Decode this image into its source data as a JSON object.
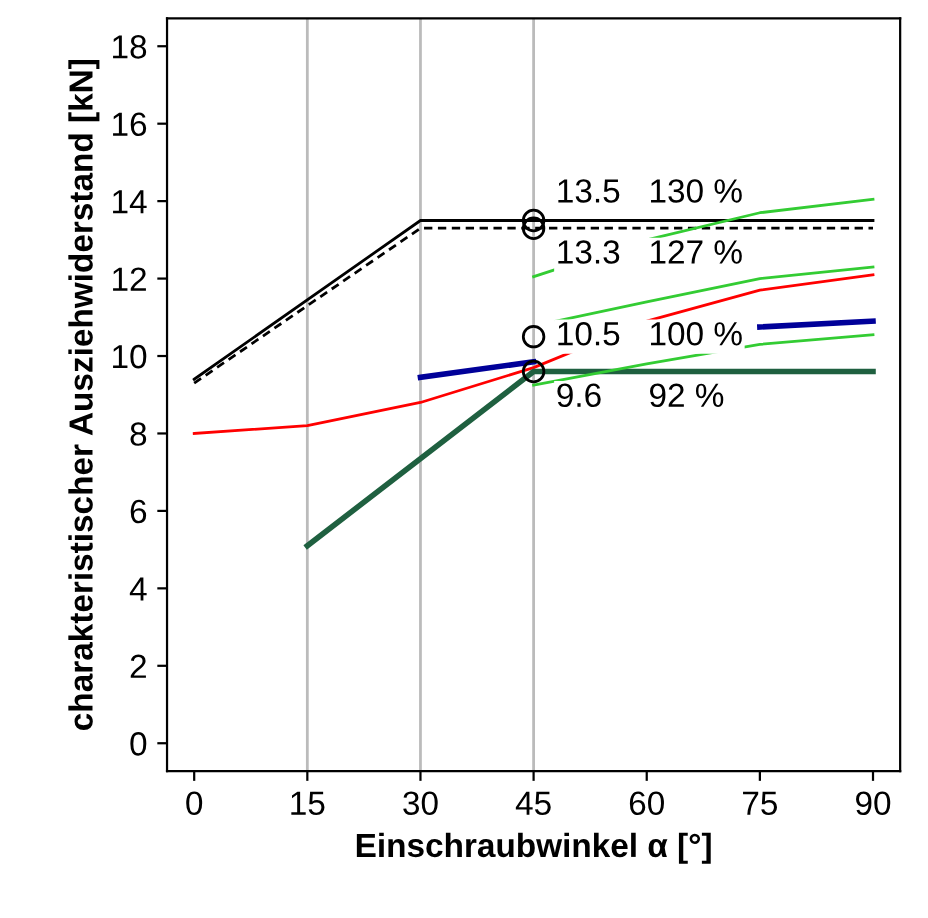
{
  "chart_data": {
    "type": "line",
    "xlabel": "Einschraubwinkel α [°]",
    "ylabel": "charakteristischer Ausziehwiderstand [kN]",
    "xlim": [
      -3.6,
      93.6
    ],
    "ylim": [
      -0.72,
      18.72
    ],
    "xticks": [
      0,
      15,
      30,
      45,
      60,
      75,
      90
    ],
    "yticks": [
      0,
      2,
      4,
      6,
      8,
      10,
      12,
      14,
      16,
      18
    ],
    "grid": false,
    "legend": false,
    "series": [
      {
        "color": "#000000",
        "line_style": "solid",
        "x": [
          0,
          30,
          90
        ],
        "values": [
          9.4,
          13.5,
          13.5
        ]
      },
      {
        "color": "#000000",
        "line_style": "dashed",
        "x": [
          0,
          30,
          90
        ],
        "values": [
          9.3,
          13.3,
          13.3
        ]
      },
      {
        "color": "#ff0000",
        "line_style": "solid",
        "x": [
          0,
          15,
          30,
          45,
          60,
          75,
          90
        ],
        "values": [
          8.0,
          8.2,
          8.8,
          9.7,
          10.9,
          11.7,
          12.1
        ]
      },
      {
        "color": "#000099",
        "line_style": "solid",
        "x": [
          30,
          45,
          60,
          75,
          90
        ],
        "values": [
          9.45,
          9.85,
          null,
          10.75,
          10.9
        ]
      },
      {
        "color": "#1f6040",
        "line_style": "solid",
        "x": [
          15,
          45,
          90
        ],
        "values": [
          5.1,
          9.6,
          9.6
        ]
      },
      {
        "color": "#33cc33",
        "line_style": "solid",
        "x": [
          45,
          60,
          75,
          90
        ],
        "values": [
          12.05,
          13.0,
          13.7,
          14.05
        ]
      },
      {
        "color": "#33cc33",
        "line_style": "solid",
        "x": [
          48,
          60,
          75,
          90
        ],
        "values": [
          10.9,
          11.4,
          12.0,
          12.3
        ]
      },
      {
        "color": "#33cc33",
        "line_style": "solid",
        "x": [
          45,
          60,
          75,
          90
        ],
        "values": [
          9.25,
          9.8,
          10.3,
          10.55
        ]
      },
      {
        "type": "scatter",
        "color": "#000000",
        "marker": "circle",
        "x": [
          45,
          45,
          45,
          45
        ],
        "values": [
          13.5,
          13.3,
          10.5,
          9.6
        ]
      }
    ],
    "ref_lines": [
      {
        "axis": "x",
        "value": 15,
        "color": "#bbbbbb"
      },
      {
        "axis": "x",
        "value": 30,
        "color": "#bbbbbb"
      },
      {
        "axis": "x",
        "value": 45,
        "color": "#bbbbbb"
      }
    ],
    "annotations": [
      "13.5   130 %",
      "13.3   127 %",
      "10.5   100 %",
      "9.6     92 %"
    ]
  }
}
